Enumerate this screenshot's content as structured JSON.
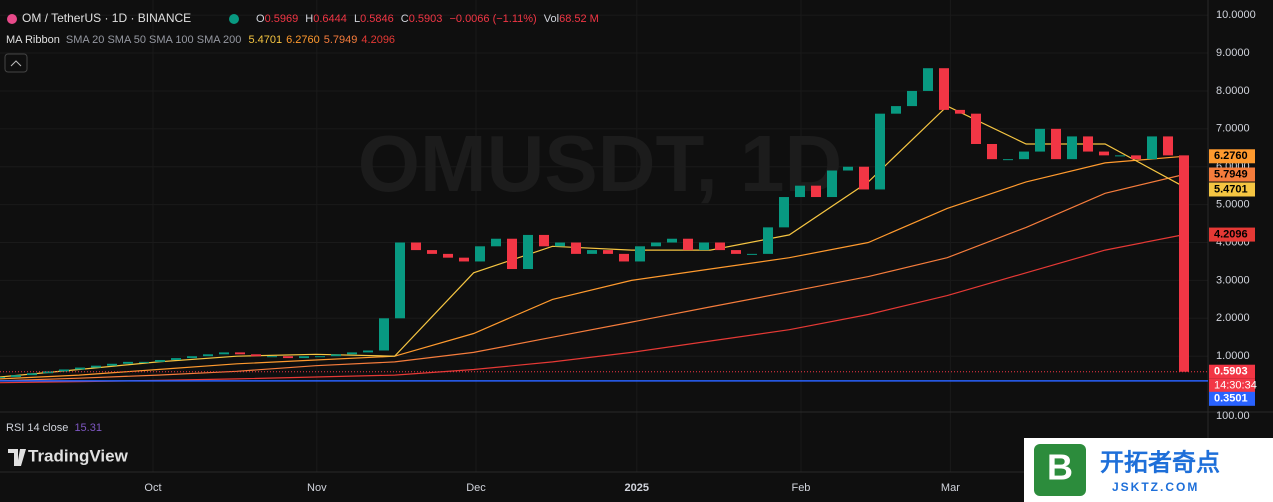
{
  "chart_data": {
    "type": "candlestick",
    "title": "OM / TetherUS · 1D · BINANCE",
    "watermark": "OMUSDT, 1D",
    "ohlc": {
      "o_label": "O",
      "o": "0.5969",
      "h_label": "H",
      "h": "0.6444",
      "l_label": "L",
      "l": "0.5846",
      "c_label": "C",
      "c": "0.5903",
      "change": "−0.0066 (−1.11%)",
      "vol_label": "Vol",
      "vol": "68.52 M"
    },
    "series": [
      {
        "name": "OMUSDT",
        "up_color": "#089981",
        "down_color": "#f23645",
        "values": [
          0.45,
          0.5,
          0.55,
          0.6,
          0.65,
          0.7,
          0.75,
          0.8,
          0.85,
          0.85,
          0.9,
          0.95,
          1.0,
          1.05,
          1.1,
          1.05,
          1.0,
          1.0,
          0.95,
          1.0,
          1.0,
          1.05,
          1.1,
          1.15,
          2.0,
          4.0,
          3.8,
          3.7,
          3.6,
          3.5,
          3.9,
          4.1,
          3.3,
          4.2,
          3.9,
          4.0,
          3.7,
          3.8,
          3.7,
          3.5,
          3.9,
          4.0,
          4.1,
          3.8,
          4.0,
          3.8,
          3.7,
          3.7,
          4.4,
          5.2,
          5.5,
          5.2,
          5.9,
          6.0,
          5.4,
          7.4,
          7.6,
          8.0,
          8.6,
          7.5,
          7.4,
          6.6,
          6.2,
          6.2,
          6.4,
          7.0,
          6.2,
          6.8,
          6.4,
          6.3,
          6.3,
          6.2,
          6.8,
          6.3,
          0.59
        ]
      }
    ],
    "ma": {
      "title": "MA Ribbon",
      "params": "SMA 20 SMA 50 SMA 100 SMA 200",
      "series": [
        {
          "name": "SMA 20",
          "color": "#f5c542",
          "label": "5.4701",
          "values": [
            0.45,
            0.65,
            0.85,
            1.0,
            1.05,
            1.0,
            3.2,
            3.9,
            3.8,
            3.8,
            4.2,
            5.6,
            7.6,
            6.6,
            6.6,
            5.4701
          ]
        },
        {
          "name": "SMA 50",
          "color": "#ff9a2e",
          "label": "6.2760",
          "values": [
            0.4,
            0.5,
            0.65,
            0.8,
            0.9,
            1.0,
            1.6,
            2.5,
            3.0,
            3.3,
            3.6,
            4.0,
            4.9,
            5.6,
            6.1,
            6.276
          ]
        },
        {
          "name": "SMA 100",
          "color": "#f57c3c",
          "label": "5.7949",
          "values": [
            0.35,
            0.42,
            0.5,
            0.6,
            0.75,
            0.85,
            1.1,
            1.5,
            1.9,
            2.3,
            2.7,
            3.1,
            3.6,
            4.4,
            5.3,
            5.7949
          ]
        },
        {
          "name": "SMA 200",
          "color": "#e53935",
          "label": "4.2096",
          "values": [
            0.3,
            0.33,
            0.36,
            0.4,
            0.45,
            0.5,
            0.65,
            0.85,
            1.1,
            1.4,
            1.7,
            2.1,
            2.6,
            3.2,
            3.8,
            4.2096
          ]
        }
      ]
    },
    "last_price": {
      "value": 0.5903,
      "label": "0.5903",
      "countdown": "14:30:34"
    },
    "hline": {
      "value": 0.3501,
      "label": "0.3501",
      "color": "#2962ff"
    },
    "xlim": [
      0,
      74
    ],
    "ylim": [
      -0.42,
      10.4
    ],
    "yticks": [
      {
        "value": 1,
        "label": "1.0000"
      },
      {
        "value": 2,
        "label": "2.0000"
      },
      {
        "value": 3,
        "label": "3.0000"
      },
      {
        "value": 4,
        "label": "4.0000"
      },
      {
        "value": 5,
        "label": "5.0000"
      },
      {
        "value": 6,
        "label": "6.0000"
      },
      {
        "value": 7,
        "label": "7.0000"
      },
      {
        "value": 8,
        "label": "8.0000"
      },
      {
        "value": 9,
        "label": "9.0000"
      },
      {
        "value": 10,
        "label": "10.0000"
      }
    ],
    "xticks": [
      {
        "value": 9.56,
        "label": "Oct"
      },
      {
        "value": 19.8,
        "label": "Nov"
      },
      {
        "value": 29.75,
        "label": "Dec"
      },
      {
        "value": 39.8,
        "label": "2025"
      },
      {
        "value": 50.06,
        "label": "Feb"
      },
      {
        "value": 59.4,
        "label": "Mar"
      }
    ],
    "rsi": {
      "title": "RSI 14 close",
      "value": "15.31",
      "axis_label": "100.00"
    },
    "brand": "TradingView",
    "site_watermark": {
      "name": "开拓者奇点",
      "url": "JSKTZ.COM"
    }
  }
}
